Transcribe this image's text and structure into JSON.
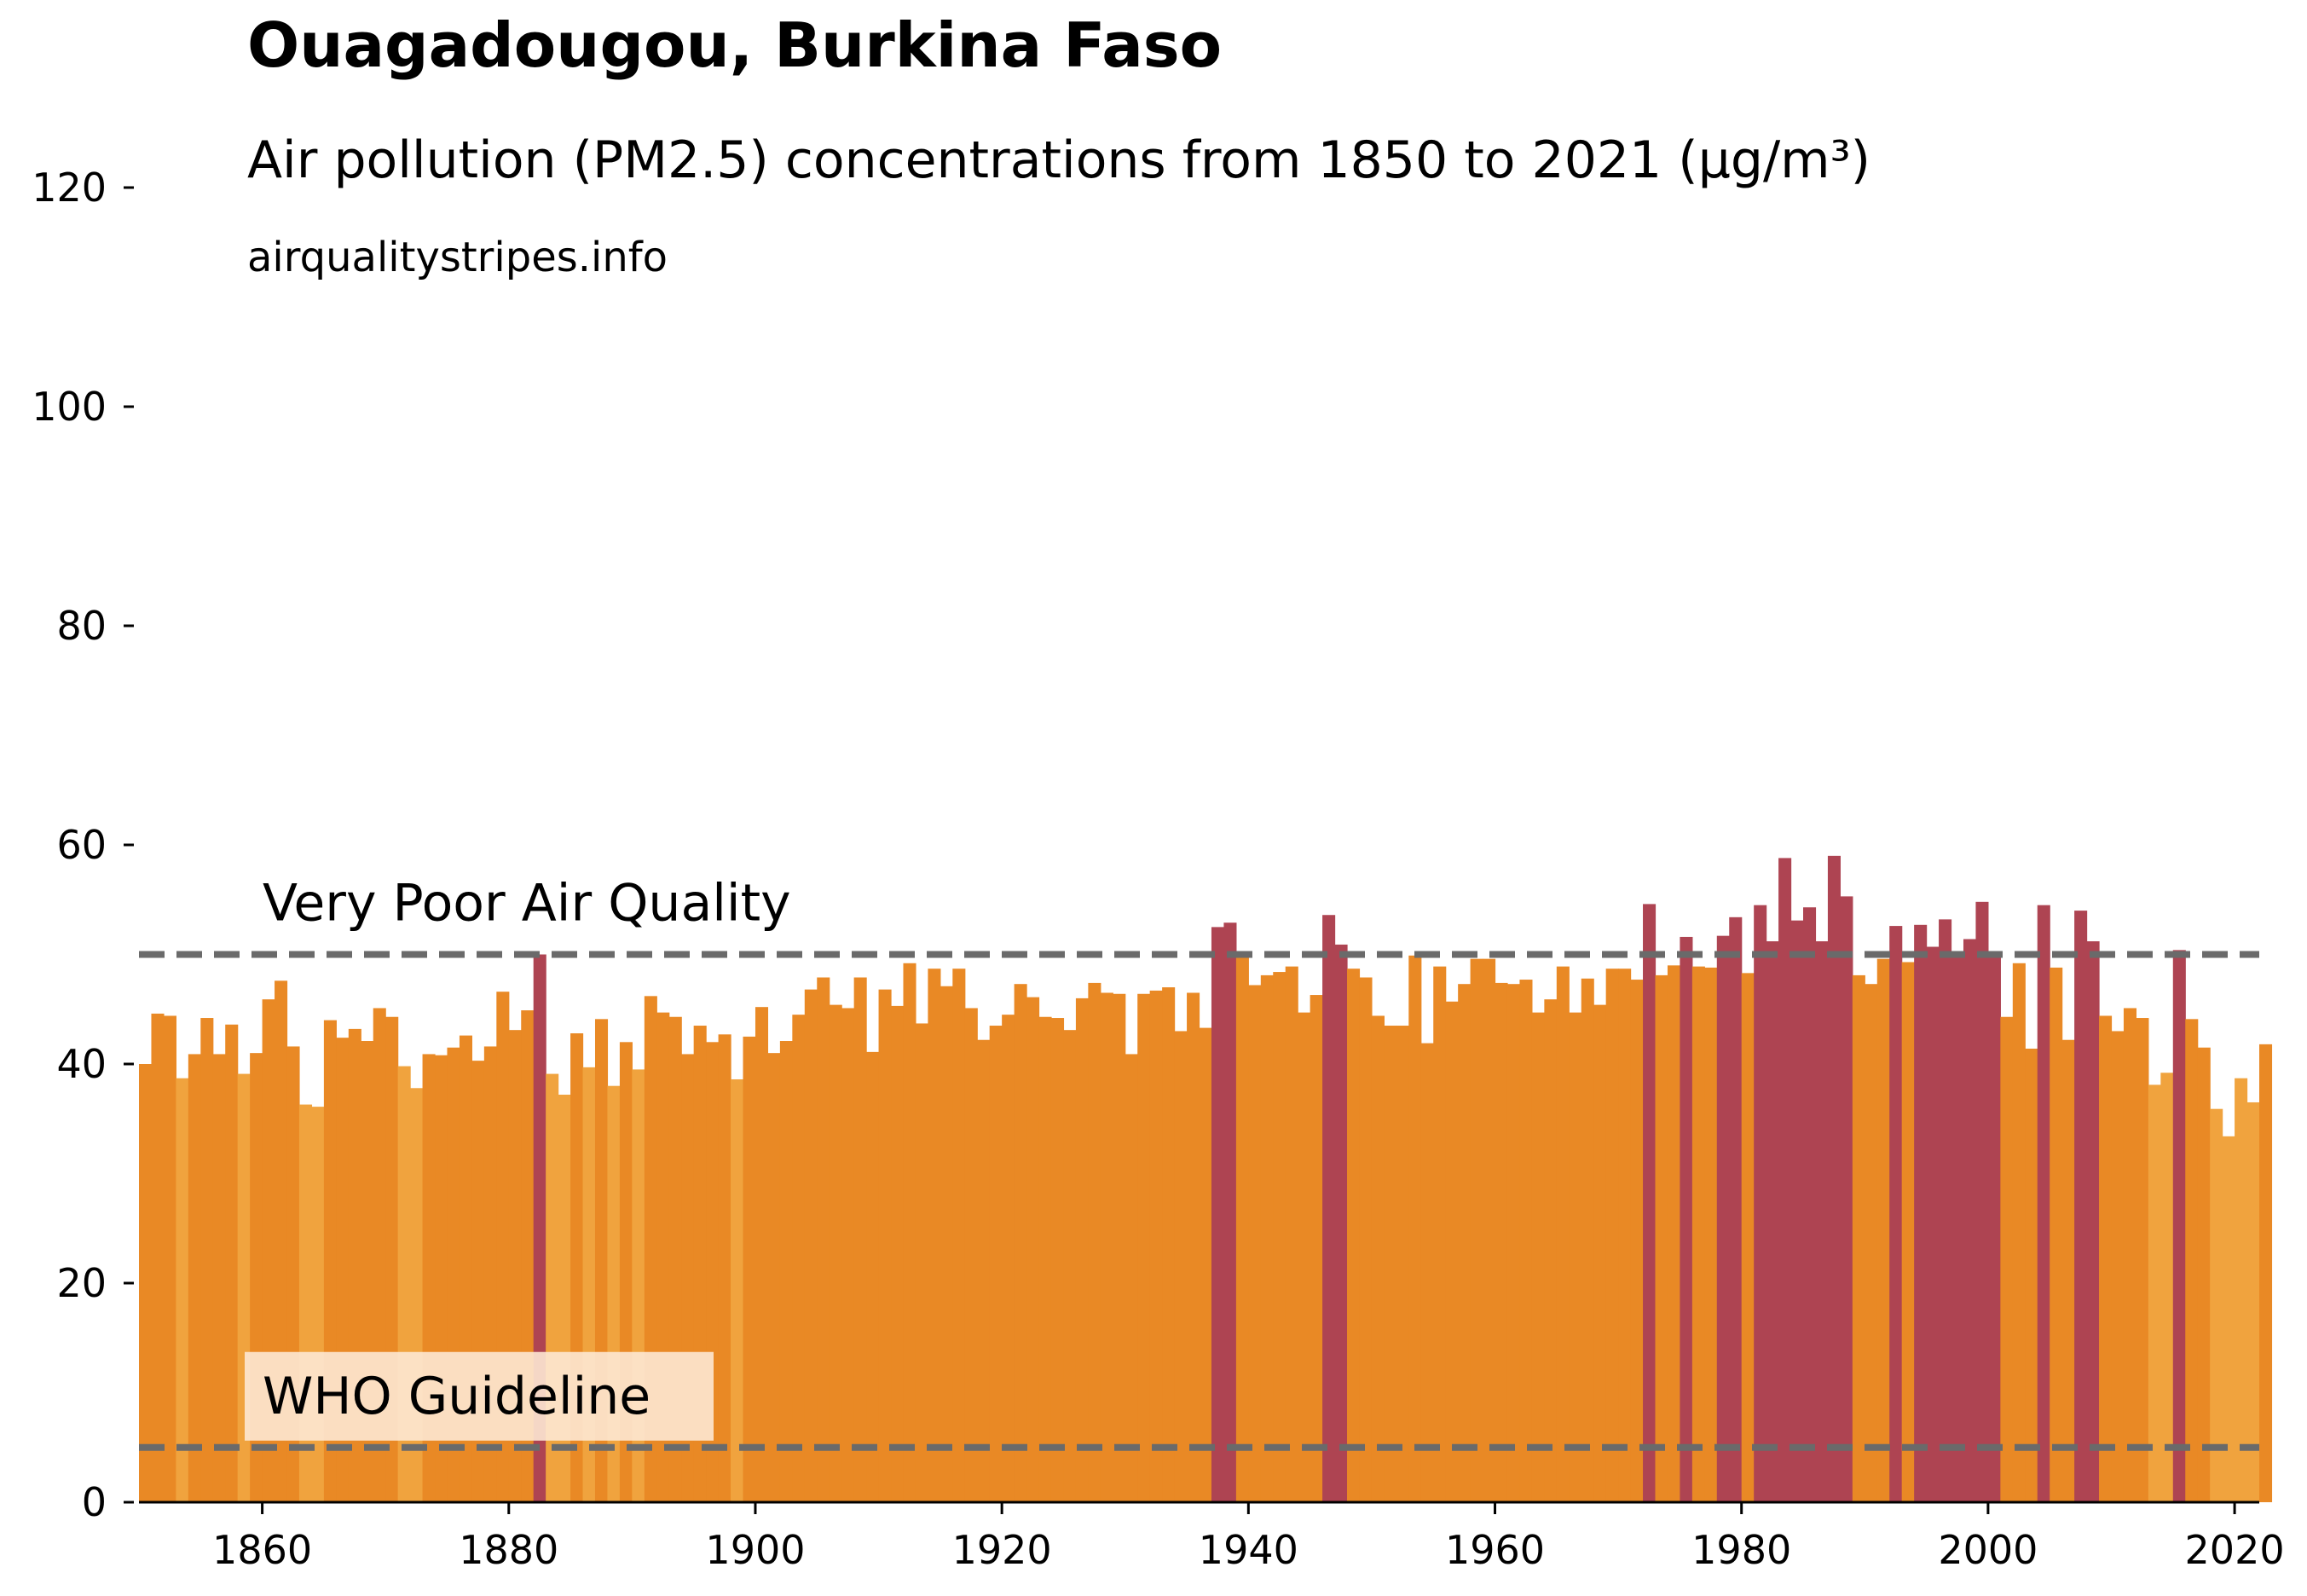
{
  "chart_data": {
    "type": "bar",
    "title": "Ouagadougou, Burkina Faso",
    "subtitle": "Air pollution (PM2.5) concentrations from 1850 to 2021 (µg/m³)",
    "source": "airqualitystripes.info",
    "xlabel": "",
    "ylabel": "",
    "xlim": [
      1850,
      2022
    ],
    "ylim": [
      0,
      120
    ],
    "x_ticks": [
      1860,
      1880,
      1900,
      1920,
      1940,
      1960,
      1980,
      2000,
      2020
    ],
    "y_ticks": [
      0,
      20,
      40,
      60,
      80,
      100,
      120
    ],
    "grid": false,
    "x_start": 1850,
    "values": [
      40.0,
      44.6,
      44.4,
      38.7,
      40.9,
      44.2,
      40.9,
      43.6,
      39.1,
      41.0,
      45.9,
      47.6,
      41.6,
      36.3,
      36.1,
      44.0,
      42.4,
      43.2,
      42.1,
      45.1,
      44.3,
      39.8,
      37.8,
      40.9,
      40.8,
      41.5,
      42.6,
      40.3,
      41.6,
      46.6,
      43.1,
      44.9,
      50.0,
      39.1,
      37.2,
      42.8,
      39.7,
      44.1,
      38.0,
      42.0,
      39.5,
      46.2,
      44.7,
      44.3,
      40.9,
      43.5,
      42.0,
      42.7,
      38.6,
      42.5,
      45.2,
      41.0,
      42.1,
      44.5,
      46.8,
      47.9,
      45.4,
      45.1,
      47.9,
      41.1,
      46.8,
      45.3,
      49.2,
      43.7,
      48.7,
      47.1,
      48.7,
      45.1,
      42.2,
      43.5,
      44.5,
      47.3,
      46.1,
      44.3,
      44.2,
      43.1,
      46.0,
      47.4,
      46.5,
      46.4,
      40.9,
      46.4,
      46.7,
      47.0,
      43.0,
      46.5,
      43.3,
      52.5,
      52.9,
      49.9,
      47.2,
      48.1,
      48.4,
      48.9,
      44.7,
      46.3,
      53.6,
      50.9,
      48.7,
      47.9,
      44.4,
      43.5,
      43.5,
      49.9,
      41.9,
      48.9,
      45.7,
      47.3,
      49.6,
      49.6,
      47.4,
      47.3,
      47.7,
      44.7,
      45.9,
      48.9,
      44.7,
      47.8,
      45.4,
      48.7,
      48.7,
      47.7,
      54.6,
      48.1,
      49.0,
      51.6,
      48.9,
      48.8,
      51.7,
      53.4,
      48.3,
      54.5,
      51.2,
      58.8,
      53.1,
      54.3,
      51.2,
      59.0,
      55.3,
      48.1,
      47.3,
      49.6,
      52.6,
      49.3,
      52.7,
      50.7,
      53.2,
      50.1,
      51.4,
      54.8,
      50.3,
      44.3,
      49.2,
      41.4,
      54.5,
      48.8,
      42.2,
      54.0,
      51.2,
      44.4,
      43.0,
      45.1,
      44.2,
      38.1,
      39.2,
      50.4,
      44.1,
      41.5,
      35.9,
      33.4,
      38.7,
      36.5,
      41.8
    ],
    "colors": {
      "very_light": "#f0a33e",
      "moderate": "#e98925",
      "very_poor": "#ae4452",
      "reference_line": "#6a6a6a",
      "who_label_bg": "#fde8d3"
    },
    "reference_lines": [
      {
        "label": "Very Poor Air Quality",
        "value": 50
      },
      {
        "label": "WHO Guideline",
        "value": 5
      }
    ]
  }
}
